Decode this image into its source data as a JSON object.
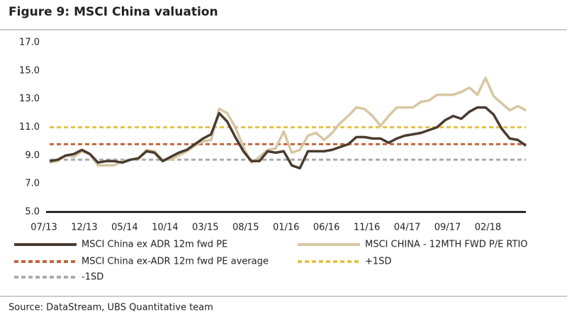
{
  "chart_data": {
    "type": "line",
    "title": "Figure 9: MSCI China valuation",
    "source": "Source:  DataStream, UBS Quantitative team",
    "categories": [
      "07/13",
      null,
      null,
      null,
      null,
      "12/13",
      null,
      null,
      null,
      null,
      "05/14",
      null,
      null,
      null,
      null,
      "10/14",
      null,
      null,
      null,
      null,
      "03/15",
      null,
      null,
      null,
      null,
      "08/15",
      null,
      null,
      null,
      null,
      "01/16",
      null,
      null,
      null,
      null,
      "06/16",
      null,
      null,
      null,
      null,
      "11/16",
      null,
      null,
      null,
      null,
      "04/17",
      null,
      null,
      null,
      null,
      "09/17",
      null,
      null,
      null,
      null,
      "02/18",
      null,
      null,
      null,
      null
    ],
    "ylim": [
      5,
      17
    ],
    "yticks": [
      {
        "value": 5,
        "label": "5.0"
      },
      {
        "value": 7,
        "label": "7.0"
      },
      {
        "value": 9,
        "label": "9.0"
      },
      {
        "value": 11,
        "label": "11.0"
      },
      {
        "value": 13,
        "label": "13.0"
      },
      {
        "value": 15,
        "label": "15.0"
      },
      {
        "value": 17,
        "label": "17.0"
      }
    ],
    "grid": false,
    "series": [
      {
        "name": "MSCI China ex ADR 12m fwd PE",
        "color": "#4a3b30",
        "values": [
          8.6,
          8.7,
          9.0,
          9.1,
          9.4,
          9.1,
          8.5,
          8.6,
          8.6,
          8.5,
          8.7,
          8.8,
          9.3,
          9.2,
          8.6,
          8.9,
          9.2,
          9.4,
          9.8,
          10.2,
          10.5,
          12.0,
          11.4,
          10.3,
          9.3,
          8.6,
          8.6,
          9.3,
          9.2,
          9.3,
          8.3,
          8.1,
          9.3,
          9.3,
          9.3,
          9.4,
          9.6,
          9.8,
          10.3,
          10.3,
          10.2,
          10.2,
          9.9,
          10.2,
          10.4,
          10.5,
          10.6,
          10.8,
          11.0,
          11.5,
          11.8,
          11.6,
          12.1,
          12.4,
          12.4,
          11.9,
          10.9,
          10.2,
          10.1,
          9.7
        ]
      },
      {
        "name": "MSCI CHINA - 12MTH FWD P/E RTIO",
        "color": "#d6c7a3",
        "values": [
          8.5,
          8.6,
          9.0,
          8.9,
          9.3,
          9.1,
          8.3,
          8.3,
          8.3,
          8.6,
          8.7,
          8.8,
          9.4,
          9.3,
          8.7,
          8.7,
          9.0,
          9.3,
          9.7,
          10.0,
          10.1,
          12.3,
          12.0,
          11.0,
          9.6,
          8.5,
          8.9,
          9.4,
          9.5,
          10.7,
          9.2,
          9.4,
          10.4,
          10.6,
          10.1,
          10.6,
          11.3,
          11.8,
          12.4,
          12.3,
          11.8,
          11.1,
          11.8,
          12.4,
          12.4,
          12.4,
          12.8,
          12.9,
          13.3,
          13.3,
          13.3,
          13.5,
          13.8,
          13.3,
          14.5,
          13.2,
          12.7,
          12.2,
          12.5,
          12.2
        ]
      }
    ],
    "hlines": [
      {
        "name": "MSCI China ex-ADR 12m fwd PE average",
        "color": "#c0673f",
        "value": 9.8
      },
      {
        "name": "+1SD",
        "color": "#e6c24d",
        "value": 11.0
      },
      {
        "name": "-1SD",
        "color": "#ababab",
        "value": 8.7
      }
    ]
  }
}
